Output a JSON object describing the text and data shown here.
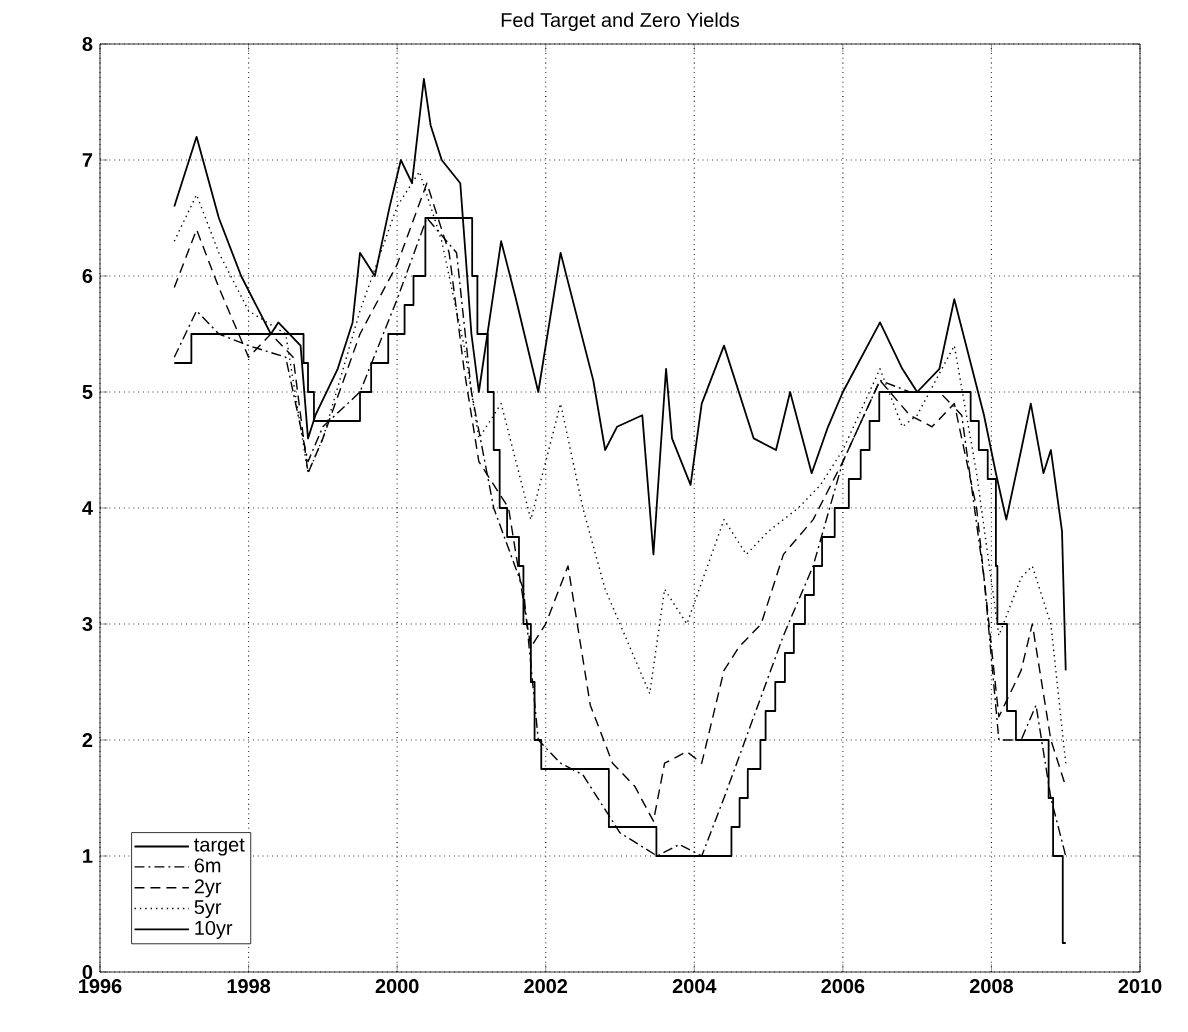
{
  "chart_data": {
    "type": "line",
    "title": "Fed Target and Zero Yields",
    "xlim": [
      1996,
      2010
    ],
    "xticks": [
      1996,
      1998,
      2000,
      2002,
      2004,
      2006,
      2008,
      2010
    ],
    "ylim": [
      0,
      8
    ],
    "yticks": [
      0,
      1,
      2,
      3,
      4,
      5,
      6,
      7,
      8
    ],
    "grid": true,
    "legend": "bottom left",
    "series": [
      {
        "name": "target",
        "type": "step",
        "color": "#000000",
        "line_style": "solid",
        "x": [
          1997.0,
          1997.23,
          1998.74,
          1998.8,
          1998.88,
          1999.5,
          1999.65,
          1999.88,
          2000.1,
          2000.22,
          2000.38,
          2001.01,
          2001.08,
          2001.22,
          2001.3,
          2001.38,
          2001.48,
          2001.64,
          2001.7,
          2001.8,
          2001.85,
          2001.94,
          2002.85,
          2003.49,
          2004.5,
          2004.61,
          2004.72,
          2004.89,
          2004.96,
          2005.09,
          2005.22,
          2005.34,
          2005.49,
          2005.61,
          2005.72,
          2005.89,
          2006.08,
          2006.24,
          2006.36,
          2006.49,
          2007.72,
          2007.83,
          2007.95,
          2008.06,
          2008.08,
          2008.21,
          2008.33,
          2008.77,
          2008.83,
          2008.96,
          2009.0
        ],
        "values": [
          5.25,
          5.5,
          5.25,
          5.0,
          4.75,
          5.0,
          5.25,
          5.5,
          5.75,
          6.0,
          6.5,
          6.0,
          5.5,
          5.0,
          4.5,
          4.0,
          3.75,
          3.5,
          3.0,
          2.5,
          2.0,
          1.75,
          1.25,
          1.0,
          1.25,
          1.5,
          1.75,
          2.0,
          2.25,
          2.5,
          2.75,
          3.0,
          3.25,
          3.5,
          3.75,
          4.0,
          4.25,
          4.5,
          4.75,
          5.0,
          4.75,
          4.5,
          4.25,
          3.5,
          3.0,
          2.25,
          2.0,
          1.5,
          1.0,
          0.25,
          0.25
        ]
      },
      {
        "name": "6m",
        "color": "#000000",
        "line_style": "dashdot",
        "x": [
          1997.0,
          1997.3,
          1997.6,
          1998.0,
          1998.5,
          1998.8,
          1999.0,
          1999.5,
          2000.0,
          2000.4,
          2000.8,
          2001.0,
          2001.3,
          2001.7,
          2001.9,
          2002.2,
          2002.5,
          2002.8,
          2003.0,
          2003.5,
          2003.8,
          2004.1,
          2004.4,
          2004.8,
          2005.2,
          2005.6,
          2006.0,
          2006.5,
          2006.9,
          2007.3,
          2007.6,
          2007.9,
          2008.1,
          2008.4,
          2008.6,
          2008.8,
          2009.0
        ],
        "values": [
          5.3,
          5.7,
          5.5,
          5.4,
          5.3,
          4.4,
          4.7,
          5.0,
          5.8,
          6.5,
          6.2,
          5.0,
          4.0,
          3.3,
          2.0,
          1.8,
          1.7,
          1.4,
          1.2,
          1.0,
          1.1,
          1.0,
          1.5,
          2.2,
          2.9,
          3.5,
          4.4,
          5.1,
          5.0,
          5.0,
          4.8,
          3.4,
          2.0,
          2.0,
          2.3,
          1.5,
          1.0
        ]
      },
      {
        "name": "2yr",
        "color": "#000000",
        "line_style": "dashed",
        "x": [
          1997.0,
          1997.3,
          1997.6,
          1998.0,
          1998.3,
          1998.6,
          1998.8,
          1999.0,
          1999.5,
          2000.0,
          2000.4,
          2000.7,
          2000.9,
          2001.1,
          2001.5,
          2001.8,
          2002.0,
          2002.3,
          2002.6,
          2002.9,
          2003.2,
          2003.45,
          2003.6,
          2003.9,
          2004.1,
          2004.4,
          2004.6,
          2004.9,
          2005.2,
          2005.6,
          2006.0,
          2006.5,
          2006.9,
          2007.2,
          2007.5,
          2007.8,
          2008.1,
          2008.4,
          2008.55,
          2008.8,
          2009.0
        ],
        "values": [
          5.9,
          6.4,
          5.9,
          5.3,
          5.5,
          5.3,
          4.3,
          4.6,
          5.5,
          6.1,
          6.8,
          6.2,
          5.2,
          4.4,
          4.0,
          2.8,
          3.0,
          3.5,
          2.3,
          1.8,
          1.6,
          1.3,
          1.8,
          1.9,
          1.8,
          2.6,
          2.8,
          3.0,
          3.6,
          3.9,
          4.4,
          5.1,
          4.8,
          4.7,
          4.9,
          4.0,
          2.2,
          2.6,
          3.0,
          2.0,
          1.6
        ]
      },
      {
        "name": "5yr",
        "color": "#000000",
        "line_style": "dotted",
        "x": [
          1997.0,
          1997.3,
          1997.6,
          1998.0,
          1998.5,
          1998.8,
          1999.0,
          1999.5,
          2000.0,
          2000.3,
          2000.6,
          2000.9,
          2001.1,
          2001.4,
          2001.8,
          2002.2,
          2002.5,
          2002.8,
          2003.0,
          2003.4,
          2003.6,
          2003.9,
          2004.4,
          2004.7,
          2005.0,
          2005.4,
          2005.7,
          2006.0,
          2006.5,
          2006.8,
          2007.0,
          2007.5,
          2007.8,
          2008.1,
          2008.4,
          2008.55,
          2008.8,
          2009.0
        ],
        "values": [
          6.3,
          6.7,
          6.2,
          5.7,
          5.5,
          4.3,
          4.6,
          5.7,
          6.6,
          6.9,
          6.3,
          5.4,
          4.6,
          4.9,
          3.9,
          4.9,
          4.0,
          3.3,
          3.0,
          2.4,
          3.3,
          3.0,
          3.9,
          3.6,
          3.8,
          4.0,
          4.2,
          4.5,
          5.2,
          4.7,
          4.8,
          5.4,
          4.3,
          2.9,
          3.4,
          3.5,
          3.0,
          1.8
        ]
      },
      {
        "name": "10yr",
        "color": "#000000",
        "line_style": "solid",
        "x": [
          1997.0,
          1997.3,
          1997.6,
          1997.9,
          1998.3,
          1998.4,
          1998.7,
          1998.8,
          1998.9,
          1999.2,
          1999.4,
          1999.5,
          1999.7,
          1999.9,
          2000.05,
          2000.2,
          2000.36,
          2000.45,
          2000.6,
          2000.85,
          2001.0,
          2001.1,
          2001.4,
          2001.6,
          2001.9,
          2002.2,
          2002.64,
          2002.8,
          2002.96,
          2003.3,
          2003.45,
          2003.62,
          2003.7,
          2003.95,
          2004.1,
          2004.4,
          2004.8,
          2005.1,
          2005.29,
          2005.58,
          2005.8,
          2006.0,
          2006.5,
          2006.8,
          2007.0,
          2007.3,
          2007.5,
          2007.7,
          2007.9,
          2008.06,
          2008.2,
          2008.4,
          2008.53,
          2008.7,
          2008.8,
          2008.95,
          2009.0
        ],
        "values": [
          6.6,
          7.2,
          6.5,
          6.0,
          5.5,
          5.6,
          5.4,
          4.6,
          4.8,
          5.2,
          5.6,
          6.2,
          6.0,
          6.6,
          7.0,
          6.8,
          7.7,
          7.3,
          7.0,
          6.8,
          5.5,
          5.0,
          6.3,
          5.8,
          5.0,
          6.2,
          5.1,
          4.5,
          4.7,
          4.8,
          3.6,
          5.2,
          4.6,
          4.2,
          4.9,
          5.4,
          4.6,
          4.5,
          5.0,
          4.3,
          4.7,
          5.0,
          5.6,
          5.2,
          5.0,
          5.2,
          5.8,
          5.3,
          4.8,
          4.3,
          3.9,
          4.5,
          4.9,
          4.3,
          4.5,
          3.8,
          2.6
        ]
      }
    ]
  }
}
